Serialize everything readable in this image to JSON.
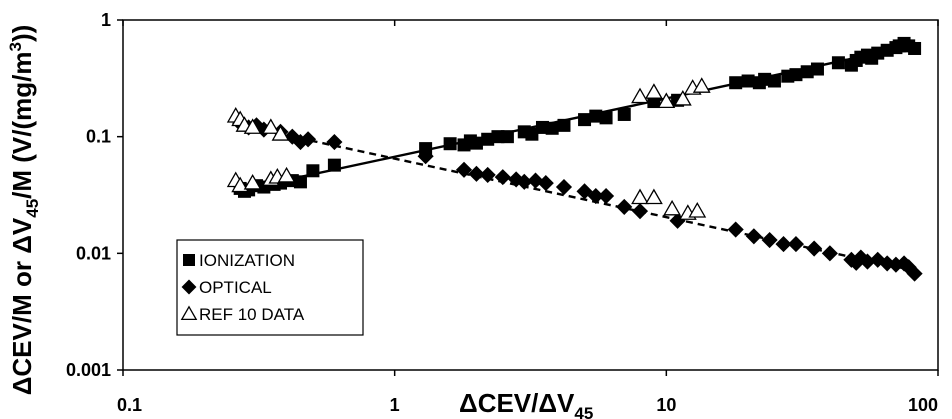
{
  "chart_data": {
    "type": "scatter",
    "xscale": "log",
    "yscale": "log",
    "xlim": [
      0.1,
      100
    ],
    "ylim": [
      0.001,
      1
    ],
    "grid": false,
    "legend_position": "lower-left",
    "x_ticks": [
      "0.1",
      "1",
      "10",
      "100"
    ],
    "y_ticks": [
      "0.001",
      "0.01",
      "0.1",
      "1"
    ],
    "xlabel_parts": {
      "main": "ΔCEV/ΔV",
      "sub": "45"
    },
    "ylabel_parts": {
      "a": "ΔCEV/M or  ΔV",
      "sub": "45",
      "b": "/M (V/(mg/m",
      "sup": "3",
      "c": "))"
    },
    "series": [
      {
        "name": "IONIZATION",
        "marker": "square",
        "color": "#000000",
        "points": [
          [
            0.27,
            0.036
          ],
          [
            0.28,
            0.034
          ],
          [
            0.29,
            0.035
          ],
          [
            0.31,
            0.038
          ],
          [
            0.33,
            0.037
          ],
          [
            0.36,
            0.039
          ],
          [
            0.38,
            0.04
          ],
          [
            0.42,
            0.042
          ],
          [
            0.45,
            0.041
          ],
          [
            0.5,
            0.051
          ],
          [
            0.6,
            0.057
          ],
          [
            1.3,
            0.079
          ],
          [
            1.6,
            0.087
          ],
          [
            1.8,
            0.085
          ],
          [
            1.9,
            0.092
          ],
          [
            2.0,
            0.088
          ],
          [
            2.2,
            0.095
          ],
          [
            2.4,
            0.1
          ],
          [
            2.6,
            0.1
          ],
          [
            3.0,
            0.11
          ],
          [
            3.2,
            0.105
          ],
          [
            3.5,
            0.12
          ],
          [
            3.8,
            0.118
          ],
          [
            4.2,
            0.125
          ],
          [
            5.0,
            0.14
          ],
          [
            5.5,
            0.15
          ],
          [
            6.0,
            0.145
          ],
          [
            7.0,
            0.155
          ],
          [
            9.0,
            0.2
          ],
          [
            11.0,
            0.205
          ],
          [
            18.0,
            0.29
          ],
          [
            20.0,
            0.3
          ],
          [
            22.0,
            0.29
          ],
          [
            23.0,
            0.31
          ],
          [
            25.0,
            0.3
          ],
          [
            28.0,
            0.33
          ],
          [
            30.0,
            0.34
          ],
          [
            33.0,
            0.36
          ],
          [
            36.0,
            0.38
          ],
          [
            43.0,
            0.43
          ],
          [
            48.0,
            0.41
          ],
          [
            50.0,
            0.45
          ],
          [
            52.0,
            0.48
          ],
          [
            55.0,
            0.5
          ],
          [
            57.0,
            0.47
          ],
          [
            60.0,
            0.52
          ],
          [
            65.0,
            0.55
          ],
          [
            70.0,
            0.58
          ],
          [
            72.0,
            0.6
          ],
          [
            75.0,
            0.63
          ],
          [
            78.0,
            0.6
          ],
          [
            82.0,
            0.57
          ]
        ]
      },
      {
        "name": "OPTICAL",
        "marker": "diamond",
        "color": "#000000",
        "points": [
          [
            0.27,
            0.13
          ],
          [
            0.29,
            0.12
          ],
          [
            0.31,
            0.125
          ],
          [
            0.33,
            0.115
          ],
          [
            0.38,
            0.11
          ],
          [
            0.42,
            0.1
          ],
          [
            0.45,
            0.09
          ],
          [
            0.48,
            0.095
          ],
          [
            0.6,
            0.09
          ],
          [
            1.3,
            0.068
          ],
          [
            1.8,
            0.052
          ],
          [
            2.0,
            0.048
          ],
          [
            2.2,
            0.047
          ],
          [
            2.5,
            0.045
          ],
          [
            2.8,
            0.043
          ],
          [
            3.0,
            0.041
          ],
          [
            3.3,
            0.042
          ],
          [
            3.6,
            0.04
          ],
          [
            4.2,
            0.037
          ],
          [
            5.0,
            0.034
          ],
          [
            5.5,
            0.031
          ],
          [
            6.0,
            0.031
          ],
          [
            7.0,
            0.025
          ],
          [
            8.0,
            0.023
          ],
          [
            11.0,
            0.019
          ],
          [
            18.0,
            0.016
          ],
          [
            21.0,
            0.014
          ],
          [
            24.0,
            0.013
          ],
          [
            27.0,
            0.012
          ],
          [
            30.0,
            0.012
          ],
          [
            35.0,
            0.011
          ],
          [
            40.0,
            0.01
          ],
          [
            48.0,
            0.0088
          ],
          [
            50.0,
            0.0083
          ],
          [
            52.0,
            0.0092
          ],
          [
            55.0,
            0.0085
          ],
          [
            60.0,
            0.0088
          ],
          [
            65.0,
            0.0082
          ],
          [
            70.0,
            0.008
          ],
          [
            75.0,
            0.0082
          ],
          [
            78.0,
            0.0076
          ],
          [
            82.0,
            0.0067
          ]
        ]
      },
      {
        "name": "REF 10 DATA",
        "marker": "triangle-open",
        "color": "#000000",
        "points": [
          [
            0.26,
            0.15
          ],
          [
            0.27,
            0.14
          ],
          [
            0.28,
            0.125
          ],
          [
            0.3,
            0.12
          ],
          [
            0.35,
            0.12
          ],
          [
            0.38,
            0.105
          ],
          [
            0.26,
            0.042
          ],
          [
            0.27,
            0.038
          ],
          [
            0.3,
            0.04
          ],
          [
            0.35,
            0.043
          ],
          [
            0.37,
            0.045
          ],
          [
            0.4,
            0.046
          ],
          [
            8.0,
            0.22
          ],
          [
            9.0,
            0.24
          ],
          [
            10.0,
            0.2
          ],
          [
            11.5,
            0.21
          ],
          [
            12.5,
            0.26
          ],
          [
            13.5,
            0.27
          ],
          [
            8.0,
            0.03
          ],
          [
            9.0,
            0.03
          ],
          [
            10.5,
            0.024
          ],
          [
            12.0,
            0.022
          ],
          [
            13.0,
            0.023
          ]
        ]
      }
    ],
    "fit_lines": [
      {
        "style": "solid",
        "color": "#000000",
        "points": [
          [
            0.27,
            0.035
          ],
          [
            80,
            0.6
          ]
        ]
      },
      {
        "style": "dashed",
        "color": "#000000",
        "points": [
          [
            0.27,
            0.125
          ],
          [
            80,
            0.0072
          ]
        ]
      }
    ]
  }
}
